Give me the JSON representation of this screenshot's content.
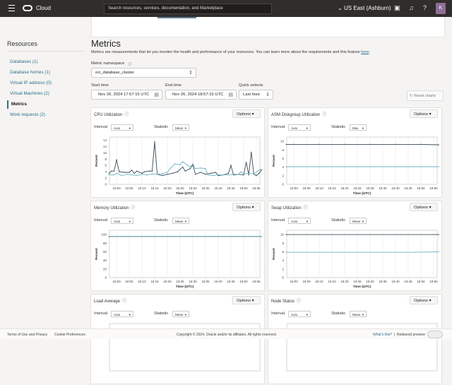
{
  "header": {
    "app": "Cloud",
    "search_placeholder": "Search resources, services, documentation, and Marketplace",
    "region": "US East (Ashburn)",
    "avatar_initial": "K",
    "icons": [
      "menu-icon",
      "oracle-logo",
      "chevron-down-icon",
      "cloud-shell-icon",
      "bell-icon",
      "help-icon"
    ]
  },
  "sidebar": {
    "title": "Resources",
    "items": [
      {
        "label": "Databases (1)"
      },
      {
        "label": "Database homes (1)"
      },
      {
        "label": "Virtual IP address (0)"
      },
      {
        "label": "Virtual Machines (2)"
      },
      {
        "label": "Metrics",
        "active": true
      },
      {
        "label": "Work requests (2)"
      }
    ]
  },
  "main": {
    "title": "Metrics",
    "description": "Metrics are measurements that let you monitor the health and performance of your resources. You can learn more about the requirements and this feature ",
    "description_link": "here",
    "description_end": ".",
    "namespace_label": "Metric namespace",
    "namespace_value": "oci_database_cluster",
    "start_label": "Start time",
    "start_value": "Nov 26, 2024 17:57:15 UTC",
    "end_label": "End time",
    "end_value": "Nov 26, 2024 18:57:15 UTC",
    "quick_label": "Quick selects",
    "quick_value": "Last hour",
    "reset_label": "Reset charts",
    "options_label": "Options",
    "interval_label": "Interval",
    "statistic_label": "Statistic"
  },
  "colors": {
    "dark_series": "#3a4a57",
    "light_series": "#6cb4c2",
    "link": "#2e6f8c",
    "header": "#312d2a"
  },
  "chart_data": [
    {
      "type": "line",
      "title": "CPU Utilization",
      "interval": "Auto",
      "statistic": "Mean",
      "ylabel": "Percent",
      "xlabel": "Time (UTC)",
      "ylim": [
        0,
        15
      ],
      "yticks": [
        0,
        2,
        4,
        6,
        8,
        10,
        12,
        14
      ],
      "xlim": [
        "17:57",
        "18:57"
      ],
      "xticks": [
        "18:00",
        "18:05",
        "18:10",
        "18:15",
        "18:20",
        "18:25",
        "18:30",
        "18:35",
        "18:40",
        "18:45",
        "18:50",
        "18:55"
      ],
      "grid": true,
      "series": [
        {
          "color": "#3a4a57",
          "x": [
            "17:57",
            "17:58",
            "17:59",
            "18:00",
            "18:01",
            "18:03",
            "18:05",
            "18:06",
            "18:07",
            "18:08",
            "18:10",
            "18:11",
            "18:13",
            "18:14",
            "18:15",
            "18:16",
            "18:18",
            "18:20",
            "18:22",
            "18:24",
            "18:26",
            "18:27",
            "18:29",
            "18:30",
            "18:31",
            "18:33",
            "18:35",
            "18:37",
            "18:39",
            "18:40",
            "18:42",
            "18:44",
            "18:45",
            "18:46",
            "18:48",
            "18:50",
            "18:51",
            "18:52",
            "18:53",
            "18:54",
            "18:55",
            "18:56",
            "18:57"
          ],
          "y": [
            3.5,
            4.2,
            4.2,
            7.8,
            4,
            3.8,
            3.8,
            4.5,
            3.5,
            4.2,
            3.5,
            4,
            4.2,
            4.2,
            13.5,
            3.2,
            2.8,
            3.2,
            3.5,
            4,
            5.5,
            4.2,
            5,
            6.2,
            3.2,
            3.8,
            3.2,
            3.5,
            3.8,
            2.8,
            3,
            3.5,
            6,
            3,
            3.2,
            3,
            7,
            3,
            10.2,
            3.2,
            2.8,
            3.5,
            4.5
          ]
        },
        {
          "color": "#6cb4c2",
          "x": [
            "17:57",
            "17:59",
            "18:00",
            "18:02",
            "18:04",
            "18:06",
            "18:08",
            "18:10",
            "18:12",
            "18:14",
            "18:16",
            "18:18",
            "18:20",
            "18:21",
            "18:23",
            "18:25",
            "18:26",
            "18:28",
            "18:29",
            "18:30",
            "18:31",
            "18:33",
            "18:35",
            "18:36",
            "18:38",
            "18:40",
            "18:42",
            "18:44",
            "18:46",
            "18:48",
            "18:49",
            "18:50",
            "18:52",
            "18:54",
            "18:56",
            "18:57"
          ],
          "y": [
            3,
            3,
            3.5,
            2.8,
            3.2,
            3,
            2.8,
            3.2,
            3,
            3.3,
            3.2,
            3.4,
            3.8,
            5,
            6.5,
            6.2,
            7.2,
            6,
            5.6,
            6.5,
            5,
            5.2,
            5,
            3,
            2.8,
            3,
            3,
            3,
            3.2,
            3.2,
            4,
            3.2,
            3.5,
            3.3,
            4.5,
            4.8
          ]
        }
      ]
    },
    {
      "type": "line",
      "title": "ASM Diskgroup Utilization",
      "interval": "Auto",
      "statistic": "Max",
      "ylabel": "Percent",
      "xlabel": "Time (UTC)",
      "ylim": [
        0,
        11
      ],
      "yticks": [
        0,
        2,
        4,
        6,
        8,
        10
      ],
      "xlim": [
        "17:57",
        "18:57"
      ],
      "xticks": [
        "18:00",
        "18:05",
        "18:10",
        "18:15",
        "18:20",
        "18:25",
        "18:30",
        "18:35",
        "18:40",
        "18:45",
        "18:50",
        "18:55"
      ],
      "grid": true,
      "series": [
        {
          "color": "#3a4a57",
          "x": [
            "17:57",
            "18:00",
            "18:10",
            "18:20",
            "18:30",
            "18:40",
            "18:50",
            "18:57"
          ],
          "y": [
            9.3,
            9.3,
            9.3,
            9.3,
            9.3,
            9.3,
            9.3,
            9.2
          ]
        },
        {
          "color": "#6cb4c2",
          "x": [
            "17:57",
            "18:00",
            "18:10",
            "18:20",
            "18:30",
            "18:40",
            "18:50",
            "18:57"
          ],
          "y": [
            4.1,
            4.1,
            4.1,
            4.1,
            4.1,
            4.1,
            4.1,
            4.1
          ]
        }
      ]
    },
    {
      "type": "line",
      "title": "Memory Utilization",
      "interval": "Auto",
      "statistic": "Mean",
      "ylabel": "Percent",
      "xlabel": "Time (UTC)",
      "ylim": [
        0,
        110
      ],
      "yticks": [
        0,
        20,
        40,
        60,
        80,
        100
      ],
      "xlim": [
        "17:57",
        "18:57"
      ],
      "xticks": [
        "18:00",
        "18:05",
        "18:10",
        "18:15",
        "18:20",
        "18:25",
        "18:30",
        "18:35",
        "18:40",
        "18:45",
        "18:50",
        "18:55"
      ],
      "grid": true,
      "series": [
        {
          "color": "#3a4a57",
          "x": [
            "17:57",
            "18:57"
          ],
          "y": [
            95.5,
            95.5
          ]
        },
        {
          "color": "#6cb4c2",
          "x": [
            "17:57",
            "18:57"
          ],
          "y": [
            96,
            96
          ]
        }
      ]
    },
    {
      "type": "line",
      "title": "Swap Utilization",
      "interval": "Auto",
      "statistic": "Mean",
      "ylabel": "Percent",
      "xlabel": "Time (UTC)",
      "ylim": [
        0,
        11
      ],
      "yticks": [
        0,
        2,
        4,
        6,
        8,
        10
      ],
      "xlim": [
        "17:57",
        "18:57"
      ],
      "xticks": [
        "18:00",
        "18:05",
        "18:10",
        "18:15",
        "18:20",
        "18:25",
        "18:30",
        "18:35",
        "18:40",
        "18:45",
        "18:50",
        "18:55"
      ],
      "grid": true,
      "series": [
        {
          "color": "#3a4a57",
          "x": [
            "17:57",
            "18:57"
          ],
          "y": [
            10,
            10
          ]
        },
        {
          "color": "#6cb4c2",
          "x": [
            "17:57",
            "18:48",
            "18:57"
          ],
          "y": [
            5.9,
            5.9,
            6
          ]
        }
      ]
    },
    {
      "type": "line",
      "title": "Load Average",
      "interval": "Auto",
      "statistic": "Mean",
      "series": []
    },
    {
      "type": "line",
      "title": "Node Status",
      "interval": "Auto",
      "statistic": "Mean",
      "series": []
    }
  ],
  "footer": {
    "terms": "Terms of Use and Privacy",
    "cookies": "Cookie Preferences",
    "copyright": "Copyright © 2024, Oracle and/or its affiliates. All rights reserved.",
    "whats_this": "What's this?",
    "separator": "|",
    "preview": "Redwood preview"
  }
}
